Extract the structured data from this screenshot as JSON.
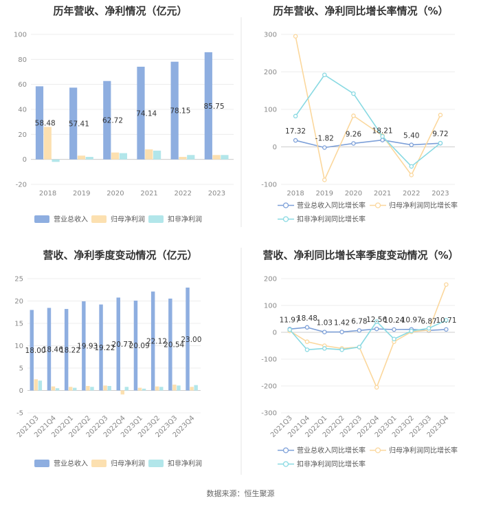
{
  "colors": {
    "revenue": "#8eaee0",
    "profit": "#fce0b0",
    "deducted": "#b2e6ea",
    "line_revenue": "#7c9fd8",
    "line_profit": "#fbd79c",
    "line_deducted": "#88d9e2"
  },
  "source": "数据来源：恒生聚源",
  "chart_data": [
    {
      "type": "bar",
      "title": "历年营收、净利情况（亿元）",
      "categories": [
        "2018",
        "2019",
        "2020",
        "2021",
        "2022",
        "2023"
      ],
      "ylim": [
        -20,
        100
      ],
      "yticks": [
        -20,
        0,
        20,
        40,
        60,
        80,
        100
      ],
      "series": [
        {
          "name": "营业总收入",
          "values": [
            58.48,
            57.41,
            62.72,
            74.14,
            78.15,
            85.75
          ],
          "labels": [
            "58.48",
            "57.41",
            "62.72",
            "74.14",
            "78.15",
            "85.75"
          ]
        },
        {
          "name": "归母净利润",
          "values": [
            26.0,
            3.0,
            5.5,
            8.0,
            2.0,
            3.5
          ]
        },
        {
          "name": "扣非净利润",
          "values": [
            -2.0,
            2.0,
            5.0,
            7.0,
            3.5,
            3.5
          ]
        }
      ],
      "legend": "bottom"
    },
    {
      "type": "line",
      "title": "历年营收、净利同比增长率情况（%）",
      "categories": [
        "2018",
        "2019",
        "2020",
        "2021",
        "2022",
        "2023"
      ],
      "ylim": [
        -100,
        300
      ],
      "yticks": [
        -100,
        0,
        100,
        200,
        300
      ],
      "series": [
        {
          "name": "营业总收入同比增长率",
          "values": [
            17.32,
            -1.82,
            9.26,
            18.21,
            5.4,
            9.72
          ],
          "labels": [
            "17.32",
            "-1.82",
            "9.26",
            "18.21",
            "5.40",
            "9.72"
          ]
        },
        {
          "name": "归母净利润同比增长率",
          "values": [
            295,
            -88,
            83,
            30,
            -75,
            85
          ]
        },
        {
          "name": "扣非净利润同比增长率",
          "values": [
            82,
            192,
            142,
            28,
            -52,
            10
          ]
        }
      ],
      "legend": "bottom"
    },
    {
      "type": "bar",
      "title": "营收、净利季度变动情况（亿元）",
      "categories": [
        "2021Q3",
        "2021Q4",
        "2022Q1",
        "2022Q2",
        "2022Q3",
        "2022Q4",
        "2023Q1",
        "2023Q2",
        "2023Q3",
        "2023Q4"
      ],
      "ylim": [
        -5,
        25
      ],
      "yticks": [
        -5,
        0,
        5,
        10,
        15,
        20,
        25
      ],
      "series": [
        {
          "name": "营业总收入",
          "values": [
            18.0,
            18.46,
            18.22,
            19.93,
            19.22,
            20.77,
            20.09,
            22.12,
            20.54,
            23.0
          ],
          "labels": [
            "18.00",
            "18.46",
            "18.22",
            "19.93",
            "19.22",
            "20.77",
            "20.09",
            "22.12",
            "20.54",
            "23.00"
          ]
        },
        {
          "name": "归母净利润",
          "values": [
            2.5,
            0.9,
            0.8,
            1.0,
            1.1,
            -0.9,
            0.6,
            0.9,
            1.3,
            0.8
          ]
        },
        {
          "name": "扣非净利润",
          "values": [
            2.2,
            0.5,
            0.6,
            0.8,
            1.0,
            0.8,
            0.4,
            0.8,
            1.1,
            1.2
          ]
        }
      ],
      "legend": "bottom"
    },
    {
      "type": "line",
      "title": "营收、净利同比增长率季度变动情况（%）",
      "categories": [
        "2021Q3",
        "2021Q4",
        "2022Q1",
        "2022Q2",
        "2022Q3",
        "2022Q4",
        "2023Q1",
        "2023Q2",
        "2023Q3",
        "2023Q4"
      ],
      "ylim": [
        -300,
        200
      ],
      "yticks": [
        -300,
        -200,
        -100,
        0,
        100,
        200
      ],
      "series": [
        {
          "name": "营业总收入同比增长率",
          "values": [
            11.97,
            18.48,
            1.03,
            1.42,
            6.78,
            12.56,
            10.24,
            10.97,
            6.87,
            10.71
          ],
          "labels": [
            "11.97",
            "18.48",
            "1.03",
            "1.42",
            "6.78",
            "12.56",
            "10.24",
            "10.97",
            "6.87",
            "10.71"
          ]
        },
        {
          "name": "归母净利润同比增长率",
          "values": [
            5,
            -35,
            -50,
            -60,
            -55,
            -205,
            -35,
            2,
            8,
            178
          ]
        },
        {
          "name": "扣非净利润同比增长率",
          "values": [
            10,
            -65,
            -60,
            -65,
            -55,
            40,
            -25,
            5,
            15,
            45
          ]
        }
      ],
      "legend": "bottom"
    }
  ]
}
